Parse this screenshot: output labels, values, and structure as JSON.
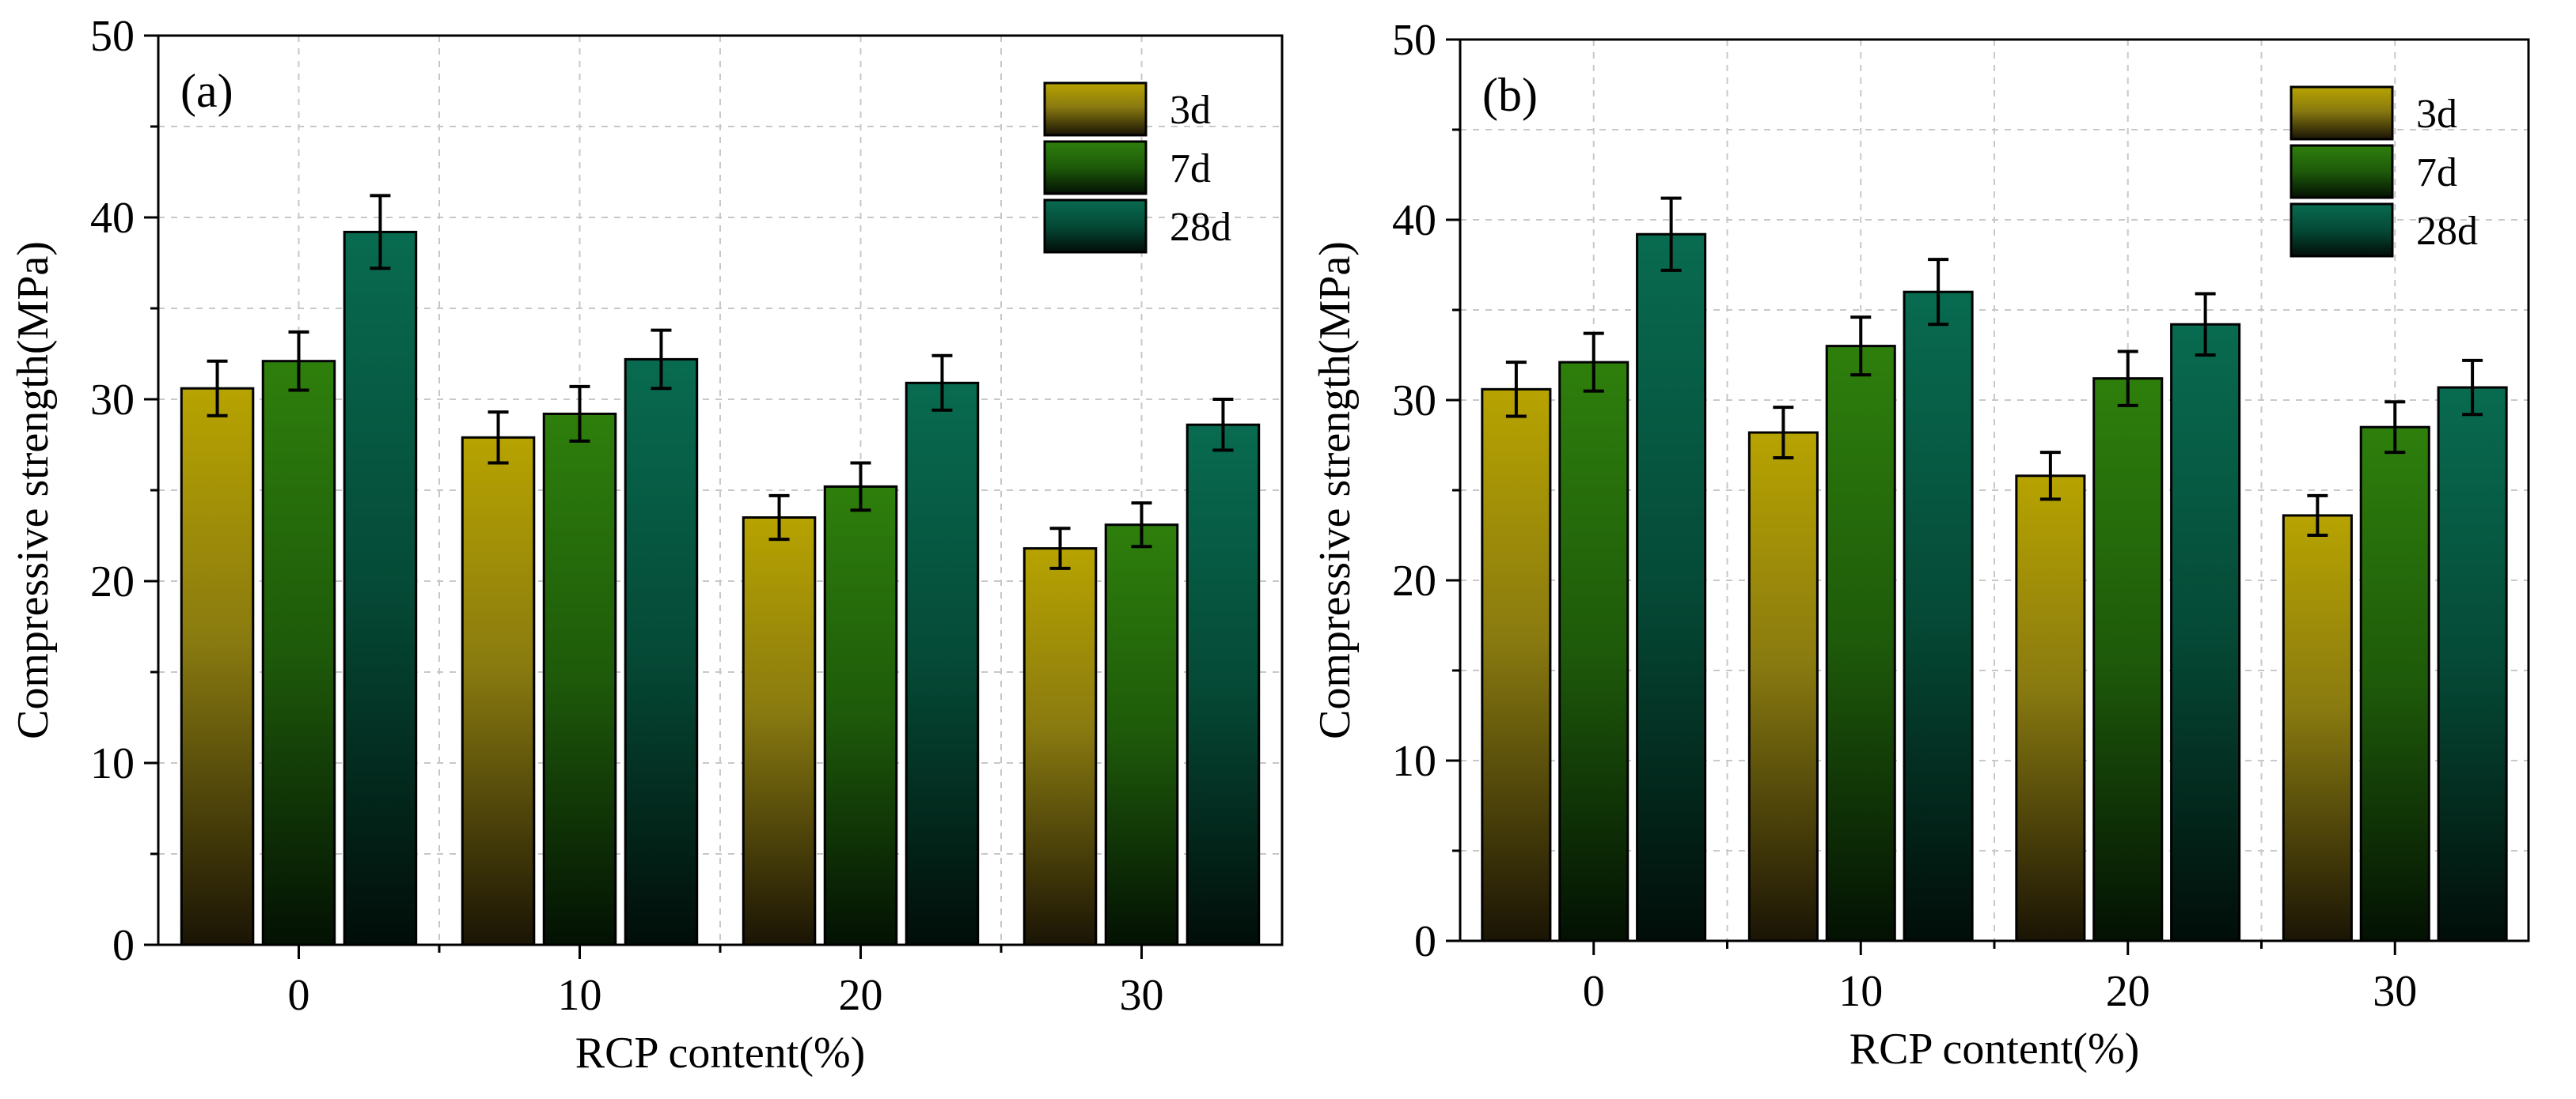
{
  "colors": {
    "3d": "#b7a300",
    "7d": "#2a7a0c",
    "28d": "#07624a"
  },
  "chart_data": [
    {
      "type": "bar",
      "panel_label": "(a)",
      "categories": [
        "0",
        "10",
        "20",
        "30"
      ],
      "xlabel": "RCP content(%)",
      "ylabel": "Compressive strength(MPa)",
      "ylim": [
        0,
        50
      ],
      "yticks": [
        "0",
        "10",
        "20",
        "30",
        "40",
        "50"
      ],
      "grid": true,
      "legend_position": "top-right",
      "series": [
        {
          "name": "3d",
          "values": [
            30.6,
            27.9,
            23.5,
            21.8
          ],
          "errors": [
            1.5,
            1.4,
            1.2,
            1.1
          ]
        },
        {
          "name": "7d",
          "values": [
            32.1,
            29.2,
            25.2,
            23.1
          ],
          "errors": [
            1.6,
            1.5,
            1.3,
            1.2
          ]
        },
        {
          "name": "28d",
          "values": [
            39.2,
            32.2,
            30.9,
            28.6
          ],
          "errors": [
            2.0,
            1.6,
            1.5,
            1.4
          ]
        }
      ]
    },
    {
      "type": "bar",
      "panel_label": "(b)",
      "categories": [
        "0",
        "10",
        "20",
        "30"
      ],
      "xlabel": "RCP content(%)",
      "ylabel": "Compressive strength(MPa)",
      "ylim": [
        0,
        50
      ],
      "yticks": [
        "0",
        "10",
        "20",
        "30",
        "40",
        "50"
      ],
      "grid": true,
      "legend_position": "top-right",
      "series": [
        {
          "name": "3d",
          "values": [
            30.6,
            28.2,
            25.8,
            23.6
          ],
          "errors": [
            1.5,
            1.4,
            1.3,
            1.1
          ]
        },
        {
          "name": "7d",
          "values": [
            32.1,
            33.0,
            31.2,
            28.5
          ],
          "errors": [
            1.6,
            1.6,
            1.5,
            1.4
          ]
        },
        {
          "name": "28d",
          "values": [
            39.2,
            36.0,
            34.2,
            30.7
          ],
          "errors": [
            2.0,
            1.8,
            1.7,
            1.5
          ]
        }
      ]
    }
  ]
}
